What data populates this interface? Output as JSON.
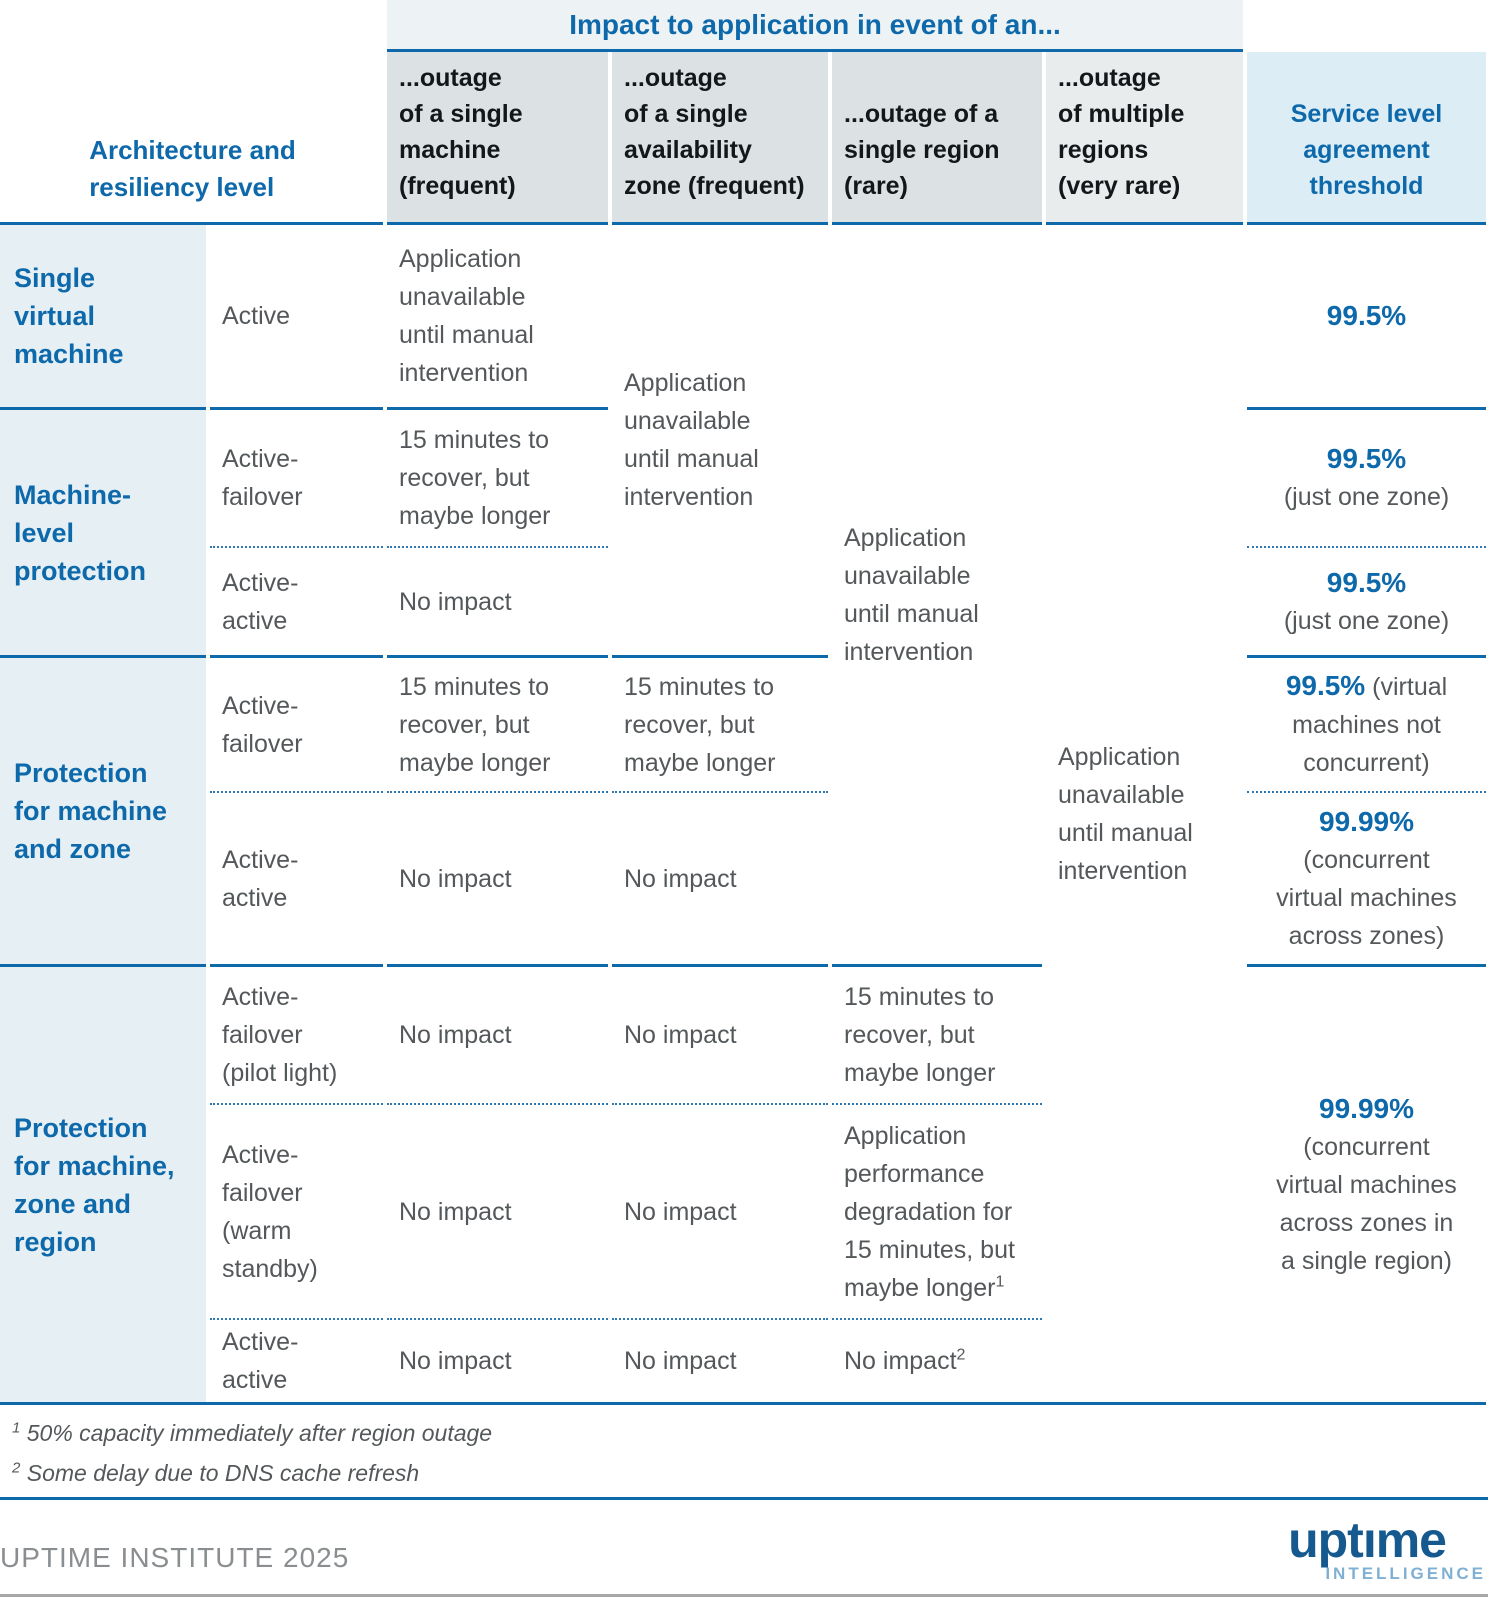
{
  "colors": {
    "accent_blue": "#0e69ab",
    "dotted_line_blue": "#2e79b3",
    "cell_grey": "#dce1e3",
    "region_cell_grey": "#e0e5e7",
    "multi_region_grey": "#e8eced",
    "group_col_bg": "#e6f0f4",
    "sla_header_bg": "#dcedf6",
    "band_bg": "#edf3f5",
    "body_text": "#54585a",
    "header_text": "#141719",
    "credit_grey": "#8a8e90",
    "logo_blue": "#15598f",
    "logo_light_blue": "#7fb0d4"
  },
  "band_title": "Impact to application in event of an...",
  "corner_header": "Architecture and\nresiliency level",
  "col_headers": {
    "machine": "...outage\nof a single\nmachine\n(frequent)",
    "zone": "...outage\nof a single\navailability\nzone (frequent)",
    "region": "...outage of a\nsingle region\n(rare)",
    "multi_region": "...outage\nof multiple\nregions\n(very rare)",
    "sla": "Service level\nagreement\nthreshold"
  },
  "groups": {
    "g1": "Single\nvirtual\nmachine",
    "g2": "Machine-\nlevel\nprotection",
    "g3": "Protection\nfor machine\nand zone",
    "g4": "Protection\nfor machine,\nzone and\nregion"
  },
  "modes": {
    "r1": "Active",
    "r2": "Active-\nfailover",
    "r3": "Active-\nactive",
    "r4": "Active-\nfailover",
    "r5": "Active-\nactive",
    "r6": "Active-\nfailover\n(pilot light)",
    "r7": "Active-\nfailover\n(warm\nstandby)",
    "r8": "Active-\nactive"
  },
  "impact": {
    "unavailable": "Application\nunavailable\nuntil manual\nintervention",
    "recover_15": "15 minutes to\nrecover, but\nmaybe longer",
    "no_impact": "No impact",
    "perf_degradation": "Application\nperformance\ndegradation for\n15 minutes, but\nmaybe longer"
  },
  "sla": {
    "r1": {
      "pct": "99.5%"
    },
    "r2": {
      "pct": "99.5%",
      "note": "(just one zone)"
    },
    "r3": {
      "pct": "99.5%",
      "note": "(just one zone)"
    },
    "r4": {
      "pct": "99.5%",
      "note": "(virtual\nmachines not\nconcurrent)"
    },
    "r5": {
      "pct": "99.99%",
      "note": "(concurrent\nvirtual machines\nacross zones)"
    },
    "r6_8": {
      "pct": "99.99%",
      "note": "(concurrent\nvirtual machines\nacross zones in\na single region)"
    }
  },
  "footnotes": [
    {
      "marker": "1",
      "text": " 50% capacity immediately after region outage"
    },
    {
      "marker": "2",
      "text": " Some delay due to DNS cache refresh"
    }
  ],
  "footer": {
    "credit": "UPTIME INSTITUTE 2025",
    "logo_word": "uptıme",
    "logo_sub": "INTELLIGENCE"
  }
}
